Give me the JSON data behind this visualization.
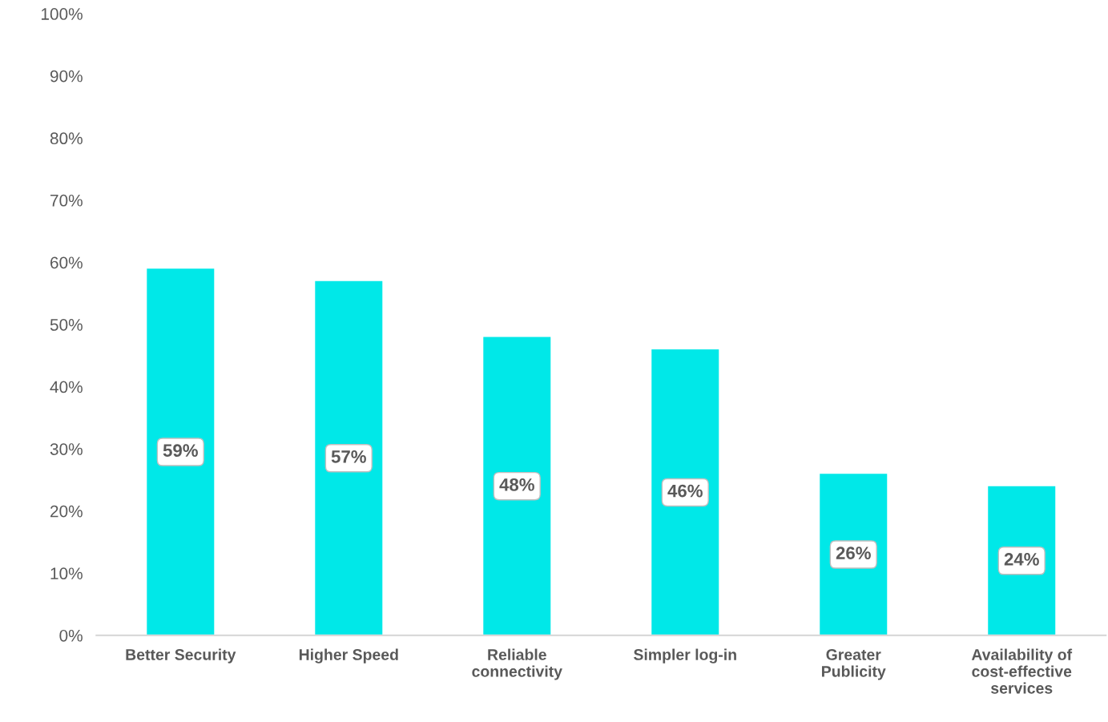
{
  "chart_data": {
    "type": "bar",
    "categories": [
      "Better Security",
      "Higher Speed",
      "Reliable\nconnectivity",
      "Simpler log-in",
      "Greater\nPublicity",
      "Availability of\ncost-effective\nservices"
    ],
    "values": [
      59,
      57,
      48,
      46,
      26,
      24
    ],
    "color": "#00e8e8",
    "data_labels": true,
    "value_labels": [
      "59%",
      "57%",
      "48%",
      "46%",
      "26%",
      "24%"
    ],
    "ylim": [
      0,
      100
    ],
    "yticks": [
      {
        "value": 0,
        "label": "0%"
      },
      {
        "value": 10,
        "label": "10%"
      },
      {
        "value": 20,
        "label": "20%"
      },
      {
        "value": 30,
        "label": "30%"
      },
      {
        "value": 40,
        "label": "40%"
      },
      {
        "value": 50,
        "label": "50%"
      },
      {
        "value": 60,
        "label": "60%"
      },
      {
        "value": 70,
        "label": "70%"
      },
      {
        "value": 80,
        "label": "80%"
      },
      {
        "value": 90,
        "label": "90%"
      },
      {
        "value": 100,
        "label": "100%"
      }
    ],
    "grid": false,
    "legend": false
  }
}
